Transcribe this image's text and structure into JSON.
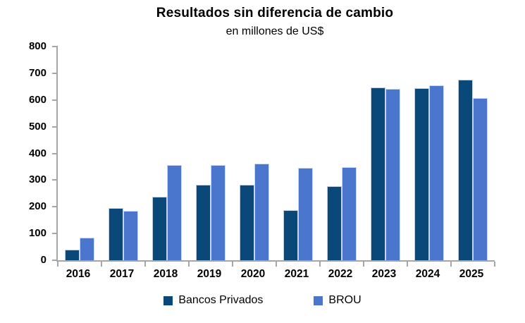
{
  "chart_data": {
    "type": "bar",
    "title": "Resultados sin diferencia de cambio",
    "subtitle": "en millones de US$",
    "categories": [
      "2016",
      "2017",
      "2018",
      "2019",
      "2020",
      "2021",
      "2022",
      "2023",
      "2024",
      "2025"
    ],
    "series": [
      {
        "name": "Bancos Privados",
        "color": "#0A487A",
        "values": [
          40,
          195,
          238,
          283,
          282,
          188,
          277,
          648,
          645,
          675
        ]
      },
      {
        "name": "BROU",
        "color": "#4A77CD",
        "values": [
          85,
          185,
          357,
          356,
          363,
          346,
          348,
          642,
          654,
          607
        ]
      }
    ],
    "xlabel": "",
    "ylabel": "",
    "ylim": [
      0,
      800
    ],
    "yticks": [
      0,
      100,
      200,
      300,
      400,
      500,
      600,
      700,
      800
    ],
    "grid": false,
    "legend_position": "bottom",
    "axis_color": "#A6A6A6"
  }
}
